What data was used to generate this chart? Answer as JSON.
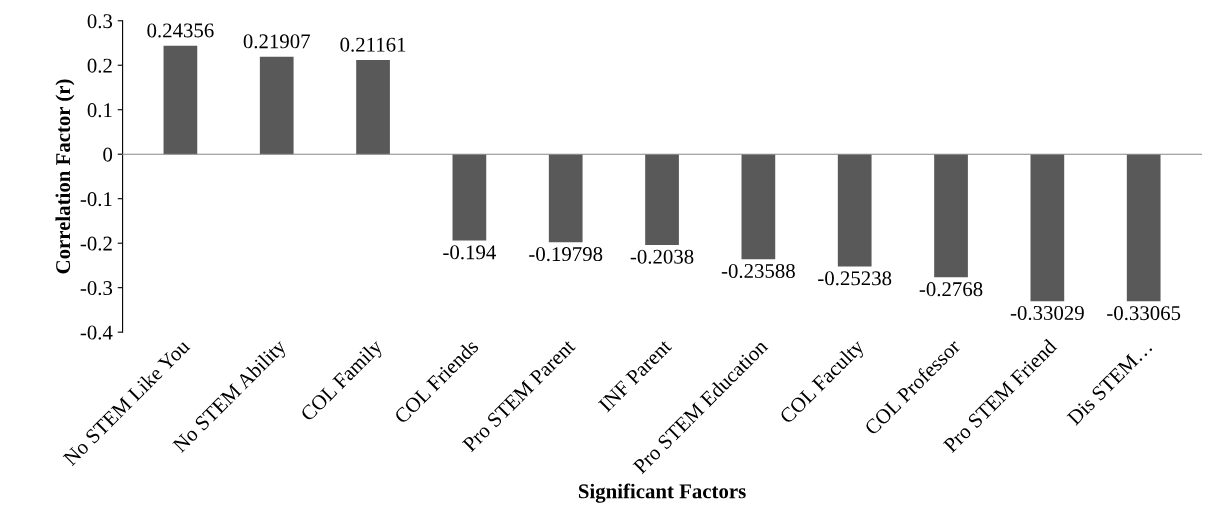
{
  "chart_data": {
    "type": "bar",
    "xlabel": "Significant Factors",
    "ylabel": "Correlation Factor (r)",
    "categories": [
      "No STEM Like You",
      "No STEM Ability",
      "COL Family",
      "COL Friends",
      "Pro STEM Parent",
      "INF Parent",
      "Pro STEM Education",
      "COL Faculty",
      "COL Professor",
      "Pro STEM Friend",
      "Dis STEM…"
    ],
    "values": [
      0.24356,
      0.21907,
      0.21161,
      -0.194,
      -0.19798,
      -0.2038,
      -0.23588,
      -0.25238,
      -0.2768,
      -0.33029,
      -0.33065
    ],
    "color": "#595959",
    "ylim": [
      -0.4,
      0.3
    ],
    "yticks": [
      -0.4,
      -0.3,
      -0.2,
      -0.1,
      0,
      0.1,
      0.2,
      0.3
    ],
    "data_labels": true
  }
}
